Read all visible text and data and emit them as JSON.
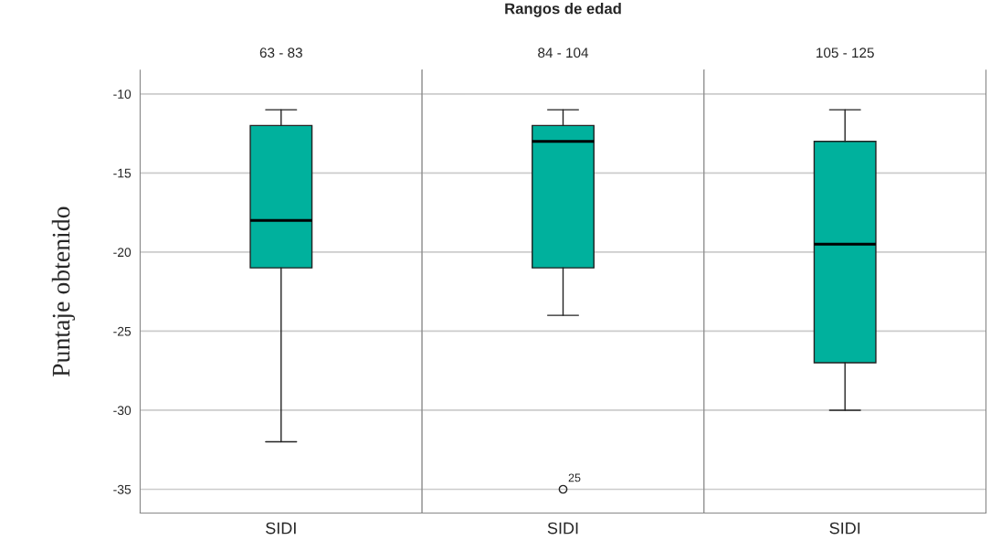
{
  "chart_data": [
    {
      "type": "box",
      "subtitle": "63 - 83",
      "ylabel": "Puntaje obtenido",
      "categories": [
        "SIDI"
      ],
      "color": "#00b19d",
      "ylim": [
        -36.5,
        -8.5
      ],
      "yticks": [
        -10,
        -15,
        -20,
        -25,
        -30,
        -35
      ],
      "grid": "y",
      "boxes": [
        {
          "low": -32,
          "q1": -21,
          "median": -18,
          "q3": -12,
          "high": -11
        }
      ]
    },
    {
      "type": "box",
      "title": "Rangos de edad",
      "subtitle": "84 - 104",
      "categories": [
        "SIDI"
      ],
      "color": "#00b19d",
      "ylim": [
        -36.5,
        -8.5
      ],
      "yticks": [
        -10,
        -15,
        -20,
        -25,
        -30,
        -35
      ],
      "grid": "y",
      "tick_labels": "x",
      "boxes": [
        {
          "low": -24,
          "q1": -21,
          "median": -13,
          "q3": -12,
          "high": -11,
          "outliers": [
            -35
          ]
        }
      ],
      "annotations": [
        "25"
      ]
    },
    {
      "type": "box",
      "subtitle": "105 - 125",
      "categories": [
        "SIDI"
      ],
      "color": "#00b19d",
      "ylim": [
        -36.5,
        -8.5
      ],
      "yticks": [
        -10,
        -15,
        -20,
        -25,
        -30,
        -35
      ],
      "grid": "y",
      "tick_labels": "x",
      "boxes": [
        {
          "low": -30,
          "q1": -27,
          "median": -19.5,
          "q3": -13,
          "high": -11
        }
      ]
    }
  ]
}
